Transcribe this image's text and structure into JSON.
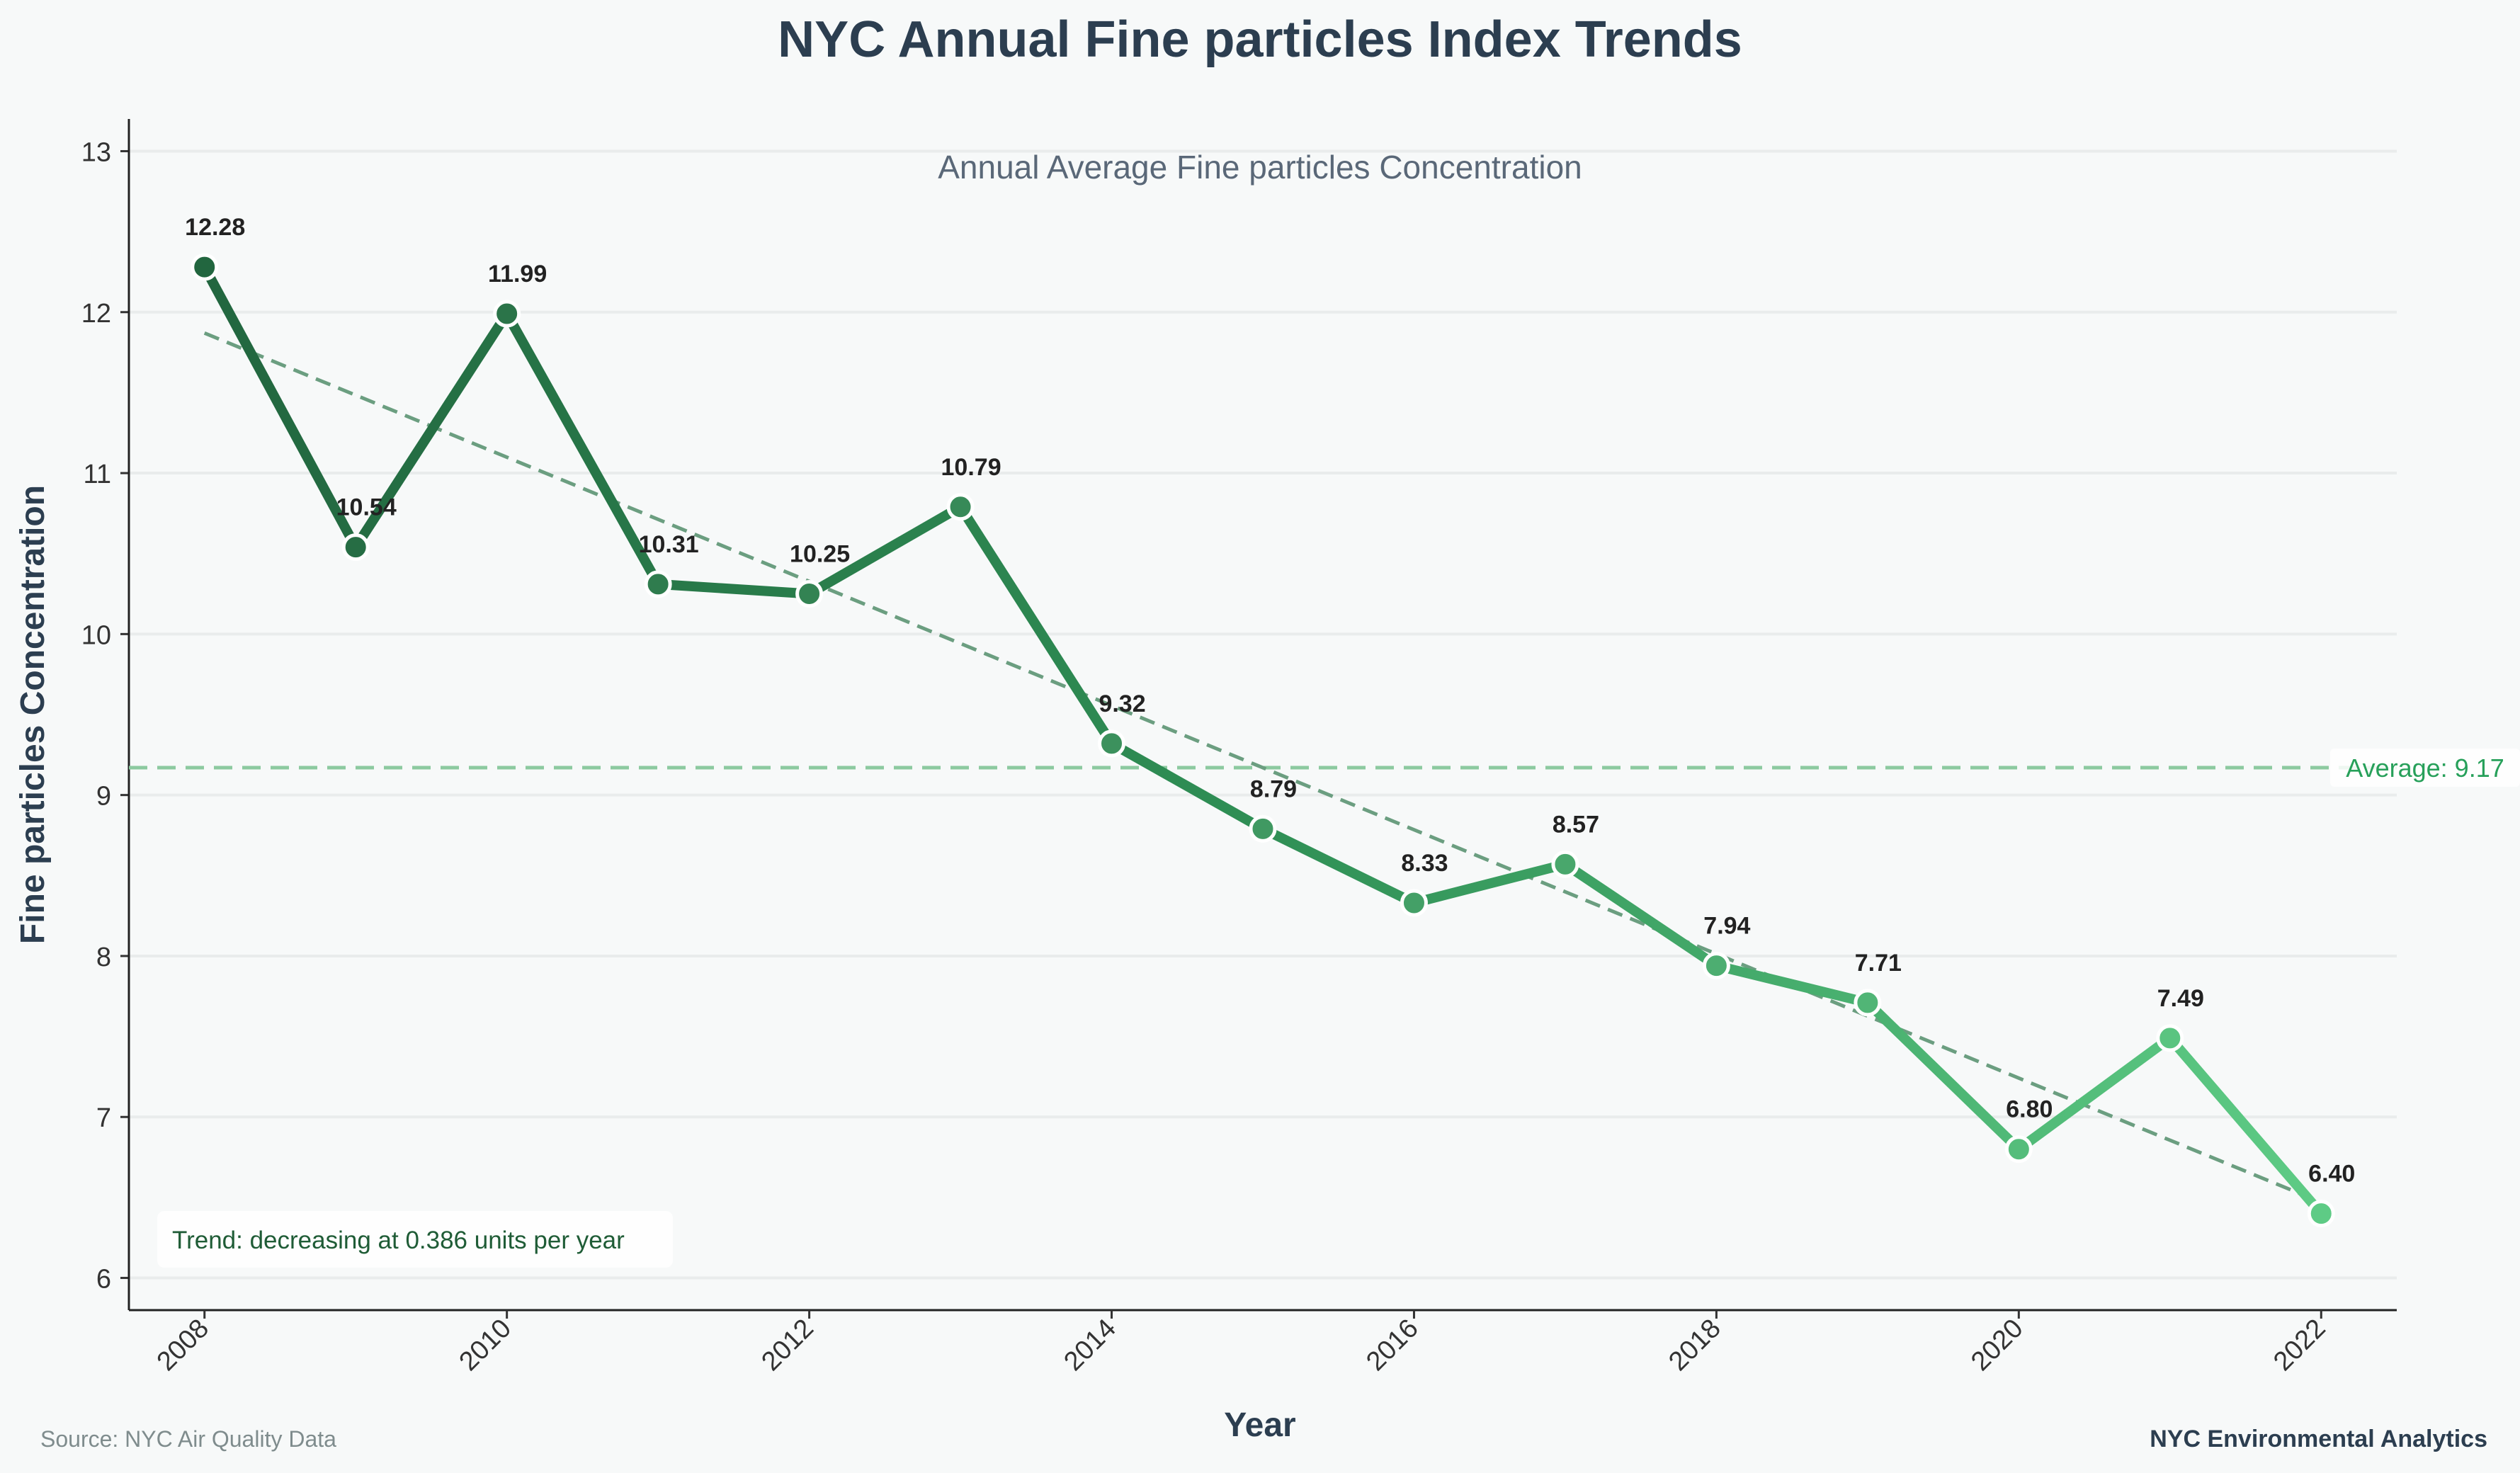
{
  "chart_data": {
    "type": "line",
    "title": "NYC Annual Fine particles Index Trends",
    "subtitle": "Annual Average Fine particles Concentration",
    "xlabel": "Year",
    "ylabel": "Fine particles Concentration",
    "x": [
      2008,
      2009,
      2010,
      2011,
      2012,
      2013,
      2014,
      2015,
      2016,
      2017,
      2018,
      2019,
      2020,
      2021,
      2022
    ],
    "series": [
      {
        "values": [
          12.28,
          10.54,
          11.99,
          10.31,
          10.25,
          10.79,
          9.32,
          8.79,
          8.33,
          8.57,
          7.94,
          7.71,
          6.8,
          7.49,
          6.4
        ],
        "labels": [
          "12.28",
          "10.54",
          "11.99",
          "10.31",
          "10.25",
          "10.79",
          "9.32",
          "8.79",
          "8.33",
          "8.57",
          "7.94",
          "7.71",
          "6.80",
          "7.49",
          "6.40"
        ]
      }
    ],
    "xticks": [
      "2008",
      "2010",
      "2012",
      "2014",
      "2016",
      "2018",
      "2020",
      "2022"
    ],
    "yticks": [
      "6",
      "7",
      "8",
      "9",
      "10",
      "11",
      "12",
      "13"
    ],
    "xlim": [
      2007.5,
      2022.5
    ],
    "ylim": [
      5.8,
      13.2
    ],
    "grid": "horizontal",
    "average": {
      "value": 9.17,
      "label": "Average: 9.17"
    },
    "trend": {
      "slope": -0.386,
      "start": 11.87,
      "end": 6.47,
      "text": "Trend: decreasing at 0.386 units per year"
    }
  },
  "footer": {
    "source": "Source: NYC Air Quality Data",
    "brand": "NYC Environmental Analytics"
  },
  "colors": {
    "dark_green": "#22663f",
    "light_green": "#5ecb85",
    "trend_line": "#6b9e80",
    "average_line": "#8ccaa0",
    "average_text": "#27a05a",
    "trend_text": "#1f5c36"
  }
}
